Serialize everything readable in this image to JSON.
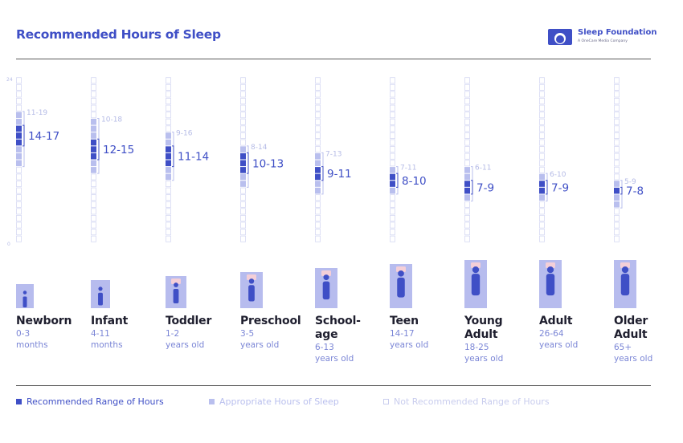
{
  "header": {
    "title": "Recommended Hours of Sleep",
    "brand_name": "Sleep Foundation",
    "brand_sub": "A OneCare Media Company"
  },
  "colors": {
    "primary": "#3f4fc6",
    "appropriate": "#b9bfee",
    "not_recommended": "#d6d9f3",
    "muted_text": "#b5bbe6",
    "age_text": "#7b86d6",
    "figure_bg": "#b7bcee",
    "figure_pad": "#f4cfd8"
  },
  "chart_data": {
    "type": "bar",
    "title": "Recommended Hours of Sleep",
    "ylim": [
      0,
      24
    ],
    "y_ticks": [
      "24",
      "0"
    ],
    "categories": [
      {
        "name": "Newborn",
        "age_line1": "0-3",
        "age_line2": "months",
        "recommended": [
          14,
          17
        ],
        "appropriate": [
          11,
          19
        ],
        "recommended_label": "14-17",
        "appropriate_label": "11-19"
      },
      {
        "name": "Infant",
        "age_line1": "4-11",
        "age_line2": "months",
        "recommended": [
          12,
          15
        ],
        "appropriate": [
          10,
          18
        ],
        "recommended_label": "12-15",
        "appropriate_label": "10-18"
      },
      {
        "name": "Toddler",
        "age_line1": "1-2",
        "age_line2": "years old",
        "recommended": [
          11,
          14
        ],
        "appropriate": [
          9,
          16
        ],
        "recommended_label": "11-14",
        "appropriate_label": "9-16"
      },
      {
        "name": "Preschool",
        "age_line1": "3-5",
        "age_line2": "years old",
        "recommended": [
          10,
          13
        ],
        "appropriate": [
          8,
          14
        ],
        "recommended_label": "10-13",
        "appropriate_label": "8-14"
      },
      {
        "name": "School-",
        "name_line2": "age",
        "age_line1": "6-13",
        "age_line2": "years old",
        "recommended": [
          9,
          11
        ],
        "appropriate": [
          7,
          13
        ],
        "recommended_label": "9-11",
        "appropriate_label": "7-13"
      },
      {
        "name": "Teen",
        "age_line1": "14-17",
        "age_line2": "years old",
        "recommended": [
          8,
          10
        ],
        "appropriate": [
          7,
          11
        ],
        "recommended_label": "8-10",
        "appropriate_label": "7-11"
      },
      {
        "name": "Young",
        "name_line2": "Adult",
        "age_line1": "18-25",
        "age_line2": "years old",
        "recommended": [
          7,
          9
        ],
        "appropriate": [
          6,
          11
        ],
        "recommended_label": "7-9",
        "appropriate_label": "6-11"
      },
      {
        "name": "Adult",
        "age_line1": "26-64",
        "age_line2": "years old",
        "recommended": [
          7,
          9
        ],
        "appropriate": [
          6,
          10
        ],
        "recommended_label": "7-9",
        "appropriate_label": "6-10"
      },
      {
        "name": "Older",
        "name_line2": "Adult",
        "age_line1": "65+",
        "age_line2": "years old",
        "recommended": [
          7,
          8
        ],
        "appropriate": [
          5,
          9
        ],
        "recommended_label": "7-8",
        "appropriate_label": "5-9"
      }
    ]
  },
  "legend": {
    "recommended": "Recommended Range of Hours",
    "appropriate": "Appropriate Hours of Sleep",
    "not_recommended": "Not Recommended Range of Hours"
  }
}
